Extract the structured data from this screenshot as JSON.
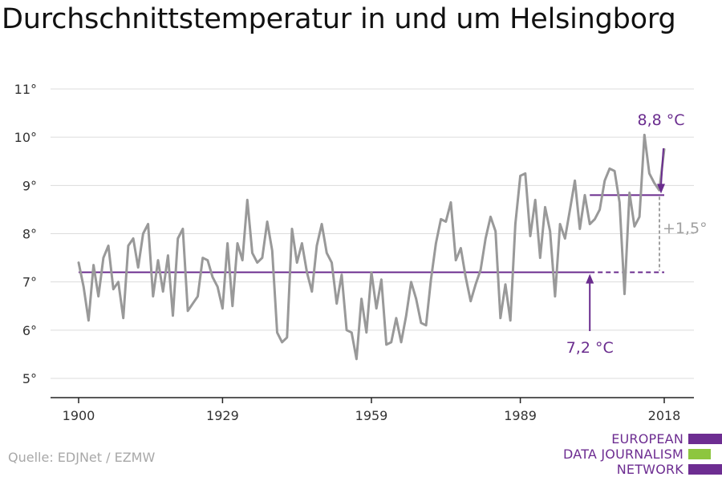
{
  "chart_data": {
    "type": "line",
    "title": "Durchschnittstemperatur in und um Helsingborg",
    "ylim": [
      5,
      11
    ],
    "yticks": [
      5,
      6,
      7,
      8,
      9,
      10,
      11
    ],
    "ytick_labels": [
      "5°",
      "6°",
      "7°",
      "8°",
      "9°",
      "10°",
      "11°"
    ],
    "xlim": [
      1900,
      2018
    ],
    "xticks": [
      1900,
      1929,
      1959,
      1989,
      2018
    ],
    "xtick_labels": [
      "1900",
      "1929",
      "1959",
      "1989",
      "2018"
    ],
    "grid": true,
    "series": [
      {
        "color": "#999999",
        "x": [
          1900,
          1901,
          1902,
          1903,
          1904,
          1905,
          1906,
          1907,
          1908,
          1909,
          1910,
          1911,
          1912,
          1913,
          1914,
          1915,
          1916,
          1917,
          1918,
          1919,
          1920,
          1921,
          1922,
          1923,
          1924,
          1925,
          1926,
          1927,
          1928,
          1929,
          1930,
          1931,
          1932,
          1933,
          1934,
          1935,
          1936,
          1937,
          1938,
          1939,
          1940,
          1941,
          1942,
          1943,
          1944,
          1945,
          1946,
          1947,
          1948,
          1949,
          1950,
          1951,
          1952,
          1953,
          1954,
          1955,
          1956,
          1957,
          1958,
          1959,
          1960,
          1961,
          1962,
          1963,
          1964,
          1965,
          1966,
          1967,
          1968,
          1969,
          1970,
          1971,
          1972,
          1973,
          1974,
          1975,
          1976,
          1977,
          1978,
          1979,
          1980,
          1981,
          1982,
          1983,
          1984,
          1985,
          1986,
          1987,
          1988,
          1989,
          1990,
          1991,
          1992,
          1993,
          1994,
          1995,
          1996,
          1997,
          1998,
          1999,
          2000,
          2001,
          2002,
          2003,
          2004,
          2005,
          2006,
          2007,
          2008,
          2009,
          2010,
          2011,
          2012,
          2013,
          2014,
          2015,
          2016,
          2017,
          2018
        ],
        "values": [
          7.4,
          6.9,
          6.2,
          7.35,
          6.7,
          7.5,
          7.75,
          6.85,
          7.0,
          6.25,
          7.75,
          7.9,
          7.3,
          8.0,
          8.2,
          6.7,
          7.45,
          6.8,
          7.55,
          6.3,
          7.9,
          8.1,
          6.4,
          6.55,
          6.7,
          7.5,
          7.45,
          7.1,
          6.9,
          6.45,
          7.8,
          6.5,
          7.8,
          7.45,
          8.7,
          7.6,
          7.4,
          7.5,
          8.25,
          7.65,
          5.95,
          5.75,
          5.85,
          8.1,
          7.4,
          7.8,
          7.2,
          6.8,
          7.75,
          8.2,
          7.6,
          7.4,
          6.55,
          7.15,
          6.0,
          5.95,
          5.4,
          6.65,
          5.95,
          7.2,
          6.45,
          7.05,
          5.7,
          5.75,
          6.25,
          5.75,
          6.3,
          7.0,
          6.65,
          6.15,
          6.1,
          7.05,
          7.8,
          8.3,
          8.25,
          8.65,
          7.45,
          7.7,
          7.1,
          6.6,
          6.95,
          7.25,
          7.9,
          8.35,
          8.05,
          6.25,
          6.95,
          6.2,
          8.2,
          9.2,
          9.25,
          7.95,
          8.7,
          7.5,
          8.55,
          8.05,
          6.7,
          8.2,
          7.9,
          8.5,
          9.1,
          8.1,
          8.8,
          8.2,
          8.3,
          8.5,
          9.1,
          9.35,
          9.3,
          8.65,
          6.75,
          8.85,
          8.15,
          8.35,
          10.05,
          9.25,
          9.05,
          8.9,
          9.75
        ]
      }
    ],
    "reference_lines": [
      {
        "value": 7.2,
        "from": 1900,
        "to": 2003,
        "style": "solid",
        "color": "#6a2c8e"
      },
      {
        "value": 7.2,
        "from": 2003,
        "to": 2018,
        "style": "dashed",
        "color": "#6a2c8e"
      },
      {
        "value": 8.8,
        "from": 2003,
        "to": 2018,
        "style": "solid",
        "color": "#6a2c8e"
      }
    ],
    "annotations": [
      {
        "id": "avg-old",
        "text": "7,2 °C",
        "x": 2003,
        "y": 7.2,
        "color": "#6a2c8e"
      },
      {
        "id": "avg-new",
        "text": "8,8 °C",
        "x": 2018,
        "y": 8.8,
        "color": "#6a2c8e"
      },
      {
        "id": "diff",
        "text": "+1,5°",
        "x": 2018,
        "from": 7.2,
        "to": 8.8,
        "color": "#a0a0a0"
      }
    ]
  },
  "source": "Quelle: EDJNet / EZMW",
  "logo": {
    "lines": [
      "EUROPEAN",
      "DATA JOURNALISM",
      "NETWORK"
    ],
    "colors": {
      "text": "#6d2d91",
      "bar_purple": "#6d2d91",
      "bar_green": "#8dc63f"
    }
  }
}
